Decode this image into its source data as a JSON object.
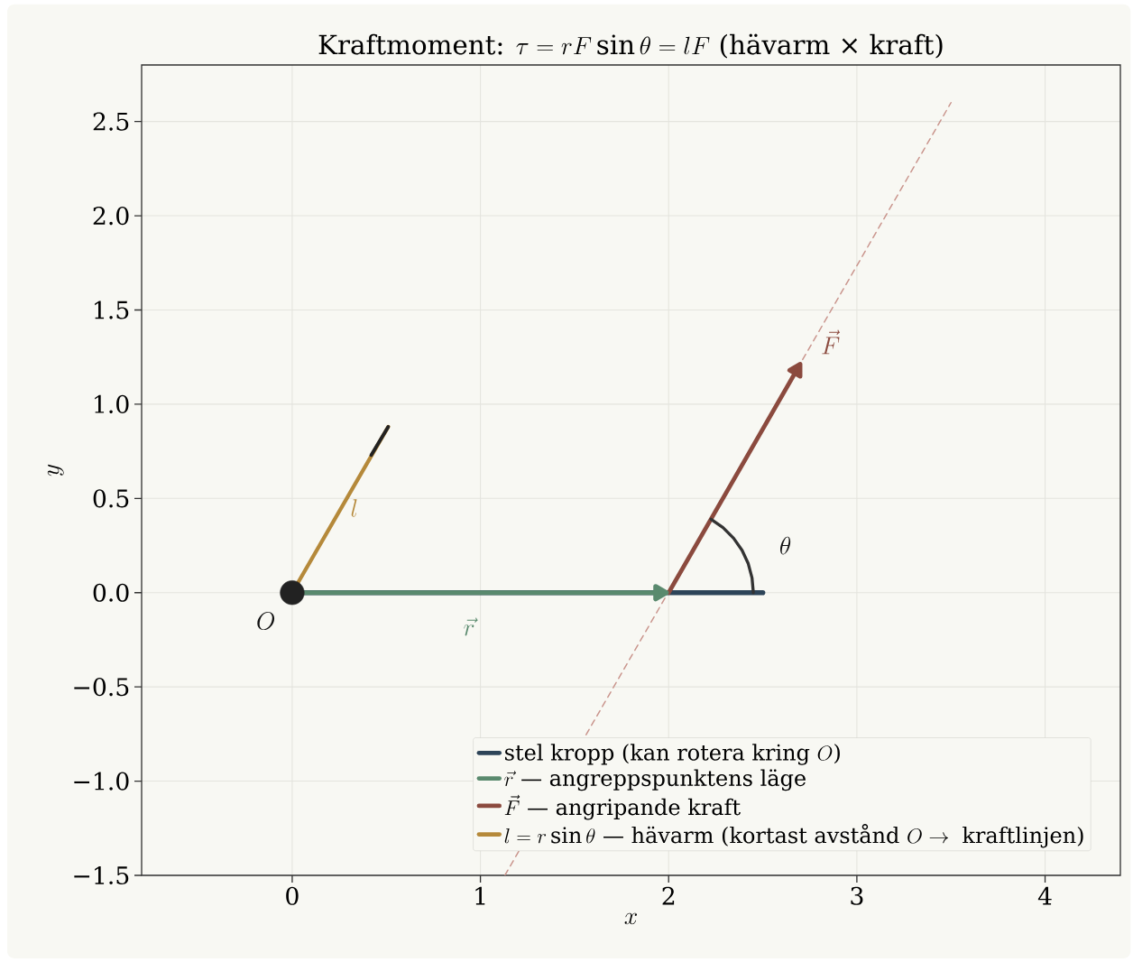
{
  "chart_data": {
    "type": "line",
    "title": "\\text{Kraftmoment: }\\tau = rF\\sin\\theta = lF\\text{ (hävarm × kraft)}",
    "xlabel": "x",
    "ylabel": "y",
    "xlim": [
      -0.8,
      4.4
    ],
    "ylim": [
      -1.5,
      2.8
    ],
    "xticks": [
      0,
      1,
      2,
      3,
      4
    ],
    "yticks": [
      {
        "value": -1.5,
        "label": "−1.5"
      },
      {
        "value": -1.0,
        "label": "−1.0"
      },
      {
        "value": -0.5,
        "label": "−0.5"
      },
      {
        "value": 0,
        "label": "0.0"
      },
      {
        "value": 0.5,
        "label": "0.5"
      },
      {
        "value": 1.0,
        "label": "1.0"
      },
      {
        "value": 1.5,
        "label": "1.5"
      },
      {
        "value": 2.0,
        "label": "2.0"
      },
      {
        "value": 2.5,
        "label": "2.5"
      }
    ],
    "grid": true,
    "legend": "bottom right",
    "series": [
      {
        "color": "#c9948c",
        "line_style": "dashed",
        "x": [
          1.13,
          3.5
        ],
        "values": [
          -1.5,
          2.6
        ]
      },
      {
        "name": "\\text{stel kropp (kan rotera kring }O\\text{)}",
        "color": "#2d4458",
        "x": [
          0,
          2.5
        ],
        "values": [
          0,
          0
        ]
      },
      {
        "name": "\\vec{r}\\text{ — angreppspunktens läge}",
        "color": "#5a8a6e",
        "marker": "triangle",
        "x": [
          0,
          1.95
        ],
        "values": [
          0,
          0
        ]
      },
      {
        "name": "\\vec{F}\\text{ — angripande kraft}",
        "color": "#8b4a3e",
        "marker": "triangle",
        "x": [
          2,
          2.68
        ],
        "values": [
          0,
          1.18
        ]
      },
      {
        "name": "l = r\\sin\\theta\\text{ — hävarm (kortast avstånd }O\\rightarrow\\text{ kraftlinjen)}",
        "color": "#b5893a",
        "x": [
          0,
          0.51
        ],
        "values": [
          0,
          0.88
        ]
      },
      {
        "color": "#222222",
        "x": [
          0.42,
          0.51
        ],
        "values": [
          0.73,
          0.88
        ]
      },
      {
        "color": "#333333",
        "x": [
          2.45,
          2.443,
          2.423,
          2.39,
          2.345,
          2.289,
          2.225
        ],
        "values": [
          0,
          0.078,
          0.154,
          0.225,
          0.289,
          0.345,
          0.39
        ]
      },
      {
        "type": "scatter",
        "marker": "circle",
        "color": "#222222",
        "x": [
          0
        ],
        "values": [
          0
        ]
      }
    ],
    "annotations": [
      "O",
      "\\vec{r}",
      "\\vec{F}",
      "\\theta",
      "l"
    ]
  }
}
